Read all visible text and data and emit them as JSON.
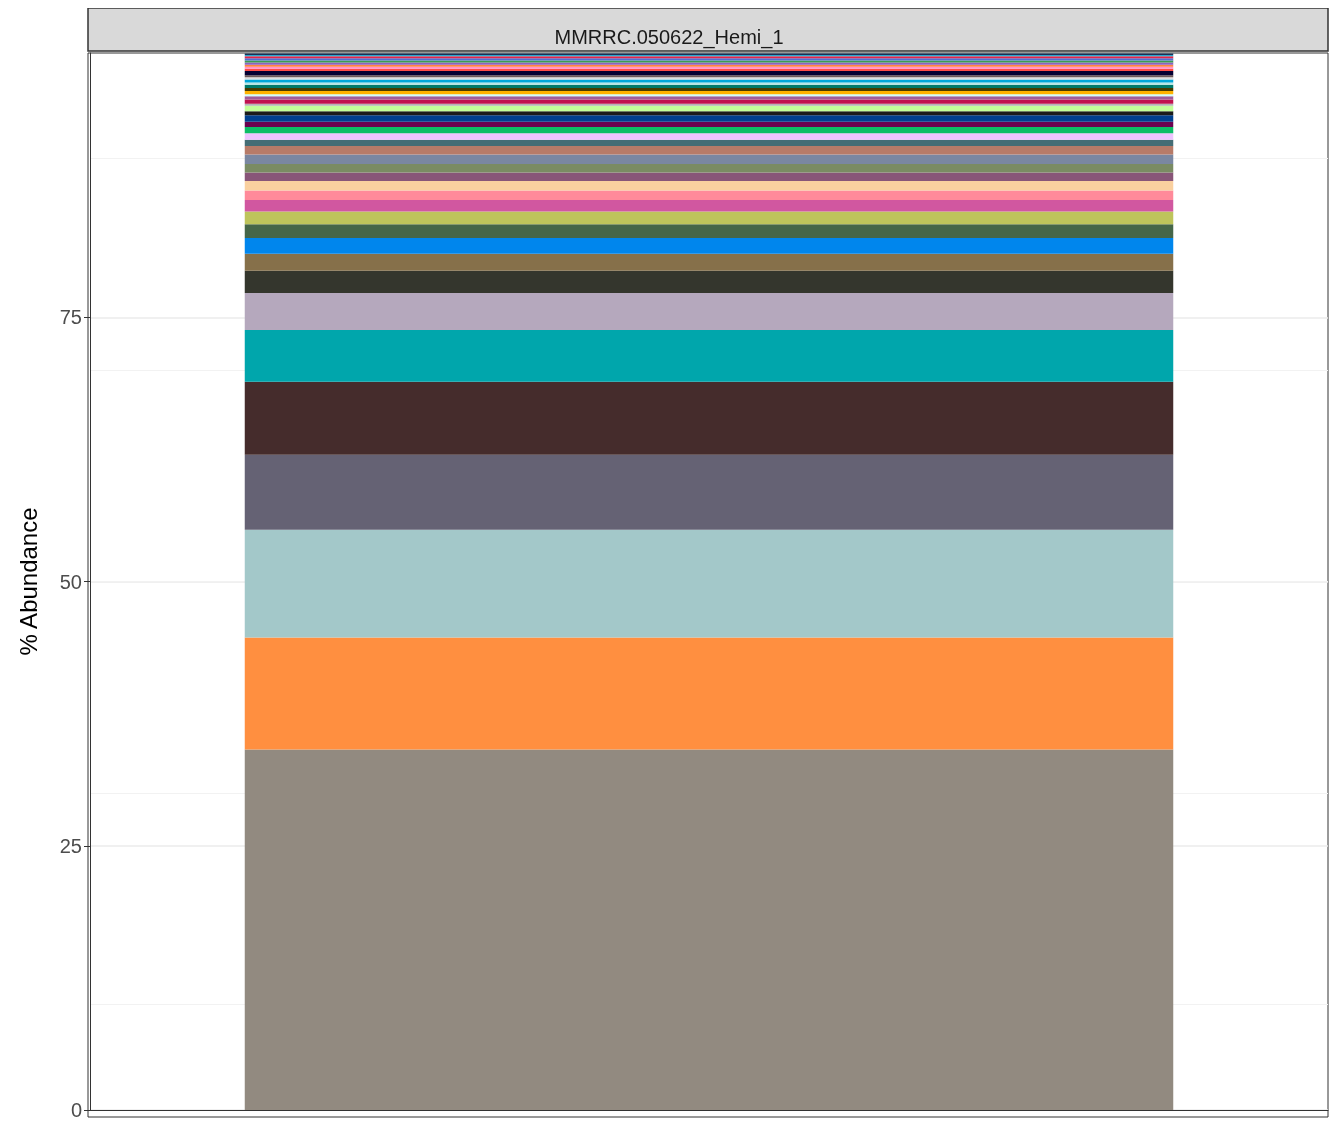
{
  "chart_data": {
    "type": "bar",
    "title": "MMRRC.050622_Hemi_1",
    "ylabel": "% Abundance",
    "categories": [
      null
    ],
    "stacked": true,
    "ylim": [
      0,
      100
    ],
    "yticks": [
      0,
      25,
      50,
      75
    ],
    "grid": true,
    "series": [
      {
        "color": "#928a80",
        "values": [
          34.1
        ]
      },
      {
        "color": "#ff8f40",
        "values": [
          10.6
        ]
      },
      {
        "color": "#a3c8c9",
        "values": [
          10.2
        ]
      },
      {
        "color": "#656274",
        "values": [
          7.1
        ]
      },
      {
        "color": "#452c2c",
        "values": [
          6.9
        ]
      },
      {
        "color": "#00a6ac",
        "values": [
          4.9
        ]
      },
      {
        "color": "#b5a8bd",
        "values": [
          3.5
        ]
      },
      {
        "color": "#34362d",
        "values": [
          2.1
        ]
      },
      {
        "color": "#86704a",
        "values": [
          1.6
        ]
      },
      {
        "color": "#0086ed",
        "values": [
          1.5
        ]
      },
      {
        "color": "#456648",
        "values": [
          1.3
        ]
      },
      {
        "color": "#bec45b",
        "values": [
          1.2
        ]
      },
      {
        "color": "#d157a0",
        "values": [
          1.1
        ]
      },
      {
        "color": "#ff8a9a",
        "values": [
          0.9
        ]
      },
      {
        "color": "#fad09f",
        "values": [
          0.9
        ]
      },
      {
        "color": "#885578",
        "values": [
          0.8
        ]
      },
      {
        "color": "#7a8b63",
        "values": [
          0.8
        ]
      },
      {
        "color": "#7a87a1",
        "values": [
          0.9
        ]
      },
      {
        "color": "#b77b68",
        "values": [
          0.8
        ]
      },
      {
        "color": "#456d75",
        "values": [
          0.6
        ]
      },
      {
        "color": "#eec3ff",
        "values": [
          0.6
        ]
      },
      {
        "color": "#0cbd66",
        "values": [
          0.6
        ]
      },
      {
        "color": "#6b004f",
        "values": [
          0.5
        ]
      },
      {
        "color": "#003f8f",
        "values": [
          0.6
        ]
      },
      {
        "color": "#1b1b1b",
        "values": [
          0.4
        ]
      },
      {
        "color": "#c2ff99",
        "values": [
          0.5
        ]
      },
      {
        "color": "#b4b4b4",
        "values": [
          0.2
        ]
      },
      {
        "color": "#c0134f",
        "values": [
          0.4
        ]
      },
      {
        "color": "#a05c9c",
        "values": [
          0.3
        ]
      },
      {
        "color": "#d0fffc",
        "values": [
          0.2
        ]
      },
      {
        "color": "#ffb200",
        "values": [
          0.3
        ]
      },
      {
        "color": "#4a3b00",
        "values": [
          0.3
        ]
      },
      {
        "color": "#007a6b",
        "values": [
          0.3
        ]
      },
      {
        "color": "#b7e6e6",
        "values": [
          0.2
        ]
      },
      {
        "color": "#00a6d9",
        "values": [
          0.3
        ]
      },
      {
        "color": "#e0e0e0",
        "values": [
          0.2
        ]
      },
      {
        "color": "#6f5a5a",
        "values": [
          0.2
        ]
      },
      {
        "color": "#060032",
        "values": [
          0.4
        ]
      },
      {
        "color": "#ff4a46",
        "values": [
          0.2
        ]
      },
      {
        "color": "#ff90c9",
        "values": [
          0.2
        ]
      },
      {
        "color": "#ff8040",
        "values": [
          0.2
        ]
      },
      {
        "color": "#8a62c0",
        "values": [
          0.2
        ]
      },
      {
        "color": "#3b9b52",
        "values": [
          0.2
        ]
      },
      {
        "color": "#4f70d4",
        "values": [
          0.2
        ]
      },
      {
        "color": "#e3274a",
        "values": [
          0.2
        ]
      },
      {
        "color": "#29a8d0",
        "values": [
          0.1
        ]
      },
      {
        "color": "#1c2e54",
        "values": [
          0.1
        ]
      },
      {
        "color": "#556677",
        "values": [
          0.1
        ]
      }
    ]
  }
}
